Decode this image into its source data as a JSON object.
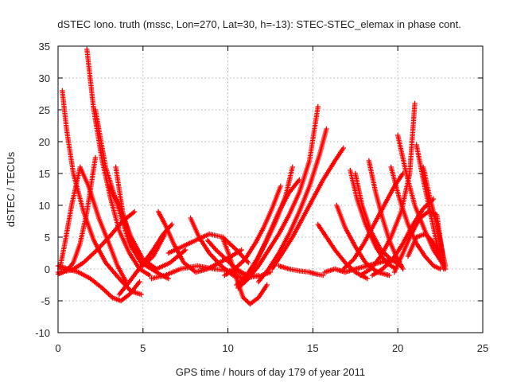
{
  "chart_data": {
    "type": "scatter",
    "title": "dSTEC Iono. truth (mssc, Lon=270, Lat=30, h=-13): STEC-STEC_elemax in phase cont.",
    "xlabel": "GPS time / hours of day 179 of year 2011",
    "ylabel": "dSTEC  / TECUs",
    "xlim": [
      0,
      25
    ],
    "ylim": [
      -10,
      35
    ],
    "xticks": [
      0,
      5,
      10,
      15,
      20,
      25
    ],
    "yticks": [
      -10,
      -5,
      0,
      5,
      10,
      15,
      20,
      25,
      30,
      35
    ],
    "grid": true,
    "marker": "+",
    "color": "#ff0000",
    "series": [
      {
        "x": [
          0.0,
          0.3,
          0.6,
          0.9,
          1.3,
          1.7,
          2.2
        ],
        "y": [
          -0.8,
          -0.5,
          0.0,
          1.0,
          4.0,
          9.0,
          17.5
        ]
      },
      {
        "x": [
          0.1,
          0.4,
          0.8,
          1.3,
          1.8,
          2.4,
          3.0,
          3.5,
          4.0
        ],
        "y": [
          0.0,
          4.0,
          10.0,
          16.0,
          13.0,
          8.0,
          4.0,
          0.5,
          -2.0
        ]
      },
      {
        "x": [
          0.25,
          0.5,
          0.9,
          1.5,
          2.1,
          2.8,
          3.6,
          4.3,
          4.9
        ],
        "y": [
          28.0,
          22.0,
          15.0,
          9.0,
          4.5,
          1.0,
          -1.5,
          -3.5,
          -4.0
        ]
      },
      {
        "x": [
          1.7,
          2.1,
          2.6,
          3.1,
          3.6,
          4.2,
          4.8,
          5.4
        ],
        "y": [
          34.5,
          25.0,
          17.0,
          11.0,
          6.0,
          2.5,
          0.0,
          -1.0
        ]
      },
      {
        "x": [
          0.0,
          0.6,
          1.2,
          1.9,
          2.6,
          3.2,
          3.7,
          4.2,
          4.8
        ],
        "y": [
          0.5,
          0.0,
          -0.5,
          -1.5,
          -3.0,
          -4.5,
          -5.0,
          -4.0,
          -2.0
        ]
      },
      {
        "x": [
          0.0,
          0.8,
          1.5,
          2.3,
          3.0,
          3.8,
          4.5
        ],
        "y": [
          -0.5,
          -0.2,
          1.0,
          3.0,
          5.0,
          7.5,
          9.0
        ]
      },
      {
        "x": [
          3.4,
          3.8,
          4.3,
          4.9,
          5.5,
          6.1,
          6.5
        ],
        "y": [
          16.0,
          9.0,
          4.0,
          1.0,
          0.0,
          -1.0,
          -1.5
        ]
      },
      {
        "x": [
          3.0,
          3.6,
          4.3,
          5.0,
          5.8,
          6.6,
          7.5
        ],
        "y": [
          13.0,
          10.0,
          5.0,
          1.5,
          0.0,
          1.0,
          3.0
        ]
      },
      {
        "x": [
          2.2,
          2.8,
          3.5,
          4.2,
          5.0,
          5.6,
          6.3
        ],
        "y": [
          25.0,
          16.0,
          10.0,
          4.0,
          0.5,
          2.0,
          5.5
        ]
      },
      {
        "x": [
          3.6,
          4.2,
          4.9,
          5.6,
          6.2,
          6.7
        ],
        "y": [
          -4.0,
          -2.0,
          0.5,
          3.0,
          5.5,
          7.0
        ]
      },
      {
        "x": [
          5.9,
          6.3,
          6.8,
          7.4,
          8.1,
          8.8,
          9.5,
          10.2,
          10.8
        ],
        "y": [
          9.0,
          7.0,
          4.0,
          1.0,
          -0.5,
          0.0,
          1.0,
          2.0,
          3.0
        ]
      },
      {
        "x": [
          5.5,
          6.3,
          7.2,
          8.2,
          9.2,
          10.2,
          11.0
        ],
        "y": [
          -1.5,
          -1.0,
          0.0,
          0.5,
          0.0,
          -0.3,
          -0.8
        ]
      },
      {
        "x": [
          7.8,
          8.3,
          8.9,
          9.6,
          10.3,
          11.0,
          11.8
        ],
        "y": [
          8.0,
          5.0,
          2.5,
          0.5,
          -1.0,
          -1.5,
          -1.0
        ]
      },
      {
        "x": [
          8.8,
          9.3,
          9.9,
          10.5,
          11.1,
          11.8,
          12.5
        ],
        "y": [
          4.5,
          3.0,
          1.5,
          0.0,
          -1.0,
          -1.2,
          -0.5
        ]
      },
      {
        "x": [
          6.5,
          7.3,
          8.1,
          8.9,
          9.7,
          10.5,
          11.2
        ],
        "y": [
          2.5,
          3.5,
          4.5,
          5.5,
          5.0,
          3.0,
          1.0
        ]
      },
      {
        "x": [
          9.7,
          10.1,
          10.5,
          10.9,
          11.3,
          11.8,
          12.3
        ],
        "y": [
          4.8,
          2.0,
          -1.5,
          -4.5,
          -5.5,
          -4.5,
          -2.5
        ]
      },
      {
        "x": [
          10.5,
          11.1,
          11.7,
          12.3,
          12.9,
          13.4,
          13.8
        ],
        "y": [
          -2.5,
          -1.0,
          1.5,
          4.5,
          8.0,
          11.5,
          16.0
        ]
      },
      {
        "x": [
          9.8,
          10.4,
          11.0,
          11.6,
          12.1,
          12.6,
          13.1
        ],
        "y": [
          -1.0,
          0.0,
          1.5,
          4.0,
          6.5,
          9.5,
          13.0
        ]
      },
      {
        "x": [
          10.6,
          11.2,
          11.8,
          12.4,
          13.0,
          13.6,
          14.2,
          14.8,
          15.3
        ],
        "y": [
          -3.0,
          -1.5,
          0.5,
          3.0,
          5.5,
          8.5,
          12.0,
          17.0,
          25.5
        ]
      },
      {
        "x": [
          11.8,
          12.4,
          13.0,
          13.6,
          14.2,
          14.8,
          15.4,
          15.8
        ],
        "y": [
          -2.0,
          0.0,
          2.5,
          5.5,
          9.0,
          13.0,
          18.0,
          22.0
        ]
      },
      {
        "x": [
          12.6,
          13.2,
          13.8,
          14.4,
          15.0,
          15.6,
          16.3,
          16.8
        ],
        "y": [
          0.0,
          2.5,
          5.0,
          8.0,
          11.0,
          14.0,
          17.0,
          19.0
        ]
      },
      {
        "x": [
          11.0,
          11.5,
          12.0,
          12.5,
          13.0,
          13.6,
          14.2
        ],
        "y": [
          -2.0,
          0.0,
          3.0,
          6.0,
          9.0,
          12.0,
          14.0
        ]
      },
      {
        "x": [
          13.0,
          13.6,
          14.2,
          14.8,
          15.2,
          15.6
        ],
        "y": [
          0.5,
          0.0,
          -0.3,
          -0.5,
          -0.8,
          -1.0
        ]
      },
      {
        "x": [
          15.3,
          15.8,
          16.3,
          16.9,
          17.5,
          18.2
        ],
        "y": [
          7.0,
          5.0,
          3.0,
          1.0,
          -0.5,
          -1.5
        ]
      },
      {
        "x": [
          15.7,
          16.3,
          16.9,
          17.5,
          18.2,
          18.9,
          19.6
        ],
        "y": [
          -0.5,
          0.0,
          -0.5,
          0.0,
          0.5,
          1.0,
          1.5
        ]
      },
      {
        "x": [
          16.4,
          16.9,
          17.5,
          18.1,
          18.8,
          19.5
        ],
        "y": [
          10.0,
          6.5,
          3.5,
          1.0,
          -0.5,
          -1.0
        ]
      },
      {
        "x": [
          17.2,
          17.6,
          18.1,
          18.7,
          19.3,
          19.9
        ],
        "y": [
          15.5,
          11.0,
          7.0,
          3.5,
          1.0,
          0.0
        ]
      },
      {
        "x": [
          17.5,
          17.9,
          18.4,
          19.0,
          19.6,
          20.2
        ],
        "y": [
          15.0,
          10.0,
          6.0,
          3.0,
          1.5,
          0.5
        ]
      },
      {
        "x": [
          16.8,
          17.4,
          18.0,
          18.6,
          19.2,
          19.8,
          20.3
        ],
        "y": [
          0.0,
          1.5,
          4.0,
          7.0,
          10.0,
          13.0,
          15.0
        ]
      },
      {
        "x": [
          18.3,
          18.7,
          19.1,
          19.5,
          19.9,
          20.3
        ],
        "y": [
          17.0,
          12.0,
          8.0,
          4.5,
          2.0,
          0.0
        ]
      },
      {
        "x": [
          17.8,
          18.4,
          19.0,
          19.6,
          20.2,
          20.7,
          21.0
        ],
        "y": [
          -1.0,
          0.0,
          2.0,
          5.0,
          9.0,
          15.0,
          26.0
        ]
      },
      {
        "x": [
          19.6,
          20.1,
          20.6,
          21.1,
          21.6,
          22.1,
          22.5
        ],
        "y": [
          16.0,
          11.0,
          7.0,
          4.0,
          2.0,
          0.5,
          0.0
        ]
      },
      {
        "x": [
          20.0,
          20.5,
          21.0,
          21.6,
          22.1,
          22.6
        ],
        "y": [
          21.0,
          15.0,
          10.0,
          6.0,
          3.0,
          1.0
        ]
      },
      {
        "x": [
          21.1,
          21.5,
          21.9,
          22.3,
          22.7
        ],
        "y": [
          19.5,
          14.0,
          9.0,
          4.0,
          0.0
        ]
      },
      {
        "x": [
          21.5,
          21.9,
          22.3,
          22.6,
          22.8
        ],
        "y": [
          16.0,
          11.0,
          7.0,
          3.0,
          0.5
        ]
      },
      {
        "x": [
          19.8,
          20.3,
          20.8,
          21.3,
          21.8,
          22.3,
          22.7
        ],
        "y": [
          -0.5,
          2.5,
          5.5,
          8.0,
          9.0,
          8.5,
          1.0
        ]
      },
      {
        "x": [
          18.5,
          19.1,
          19.7,
          20.3,
          20.9,
          21.5,
          22.1
        ],
        "y": [
          -1.0,
          0.0,
          1.5,
          4.0,
          7.0,
          9.5,
          11.0
        ]
      },
      {
        "x": [
          20.6,
          21.1,
          21.6,
          22.0,
          22.4,
          22.8
        ],
        "y": [
          2.0,
          5.0,
          5.5,
          4.5,
          2.5,
          0.0
        ]
      }
    ]
  }
}
